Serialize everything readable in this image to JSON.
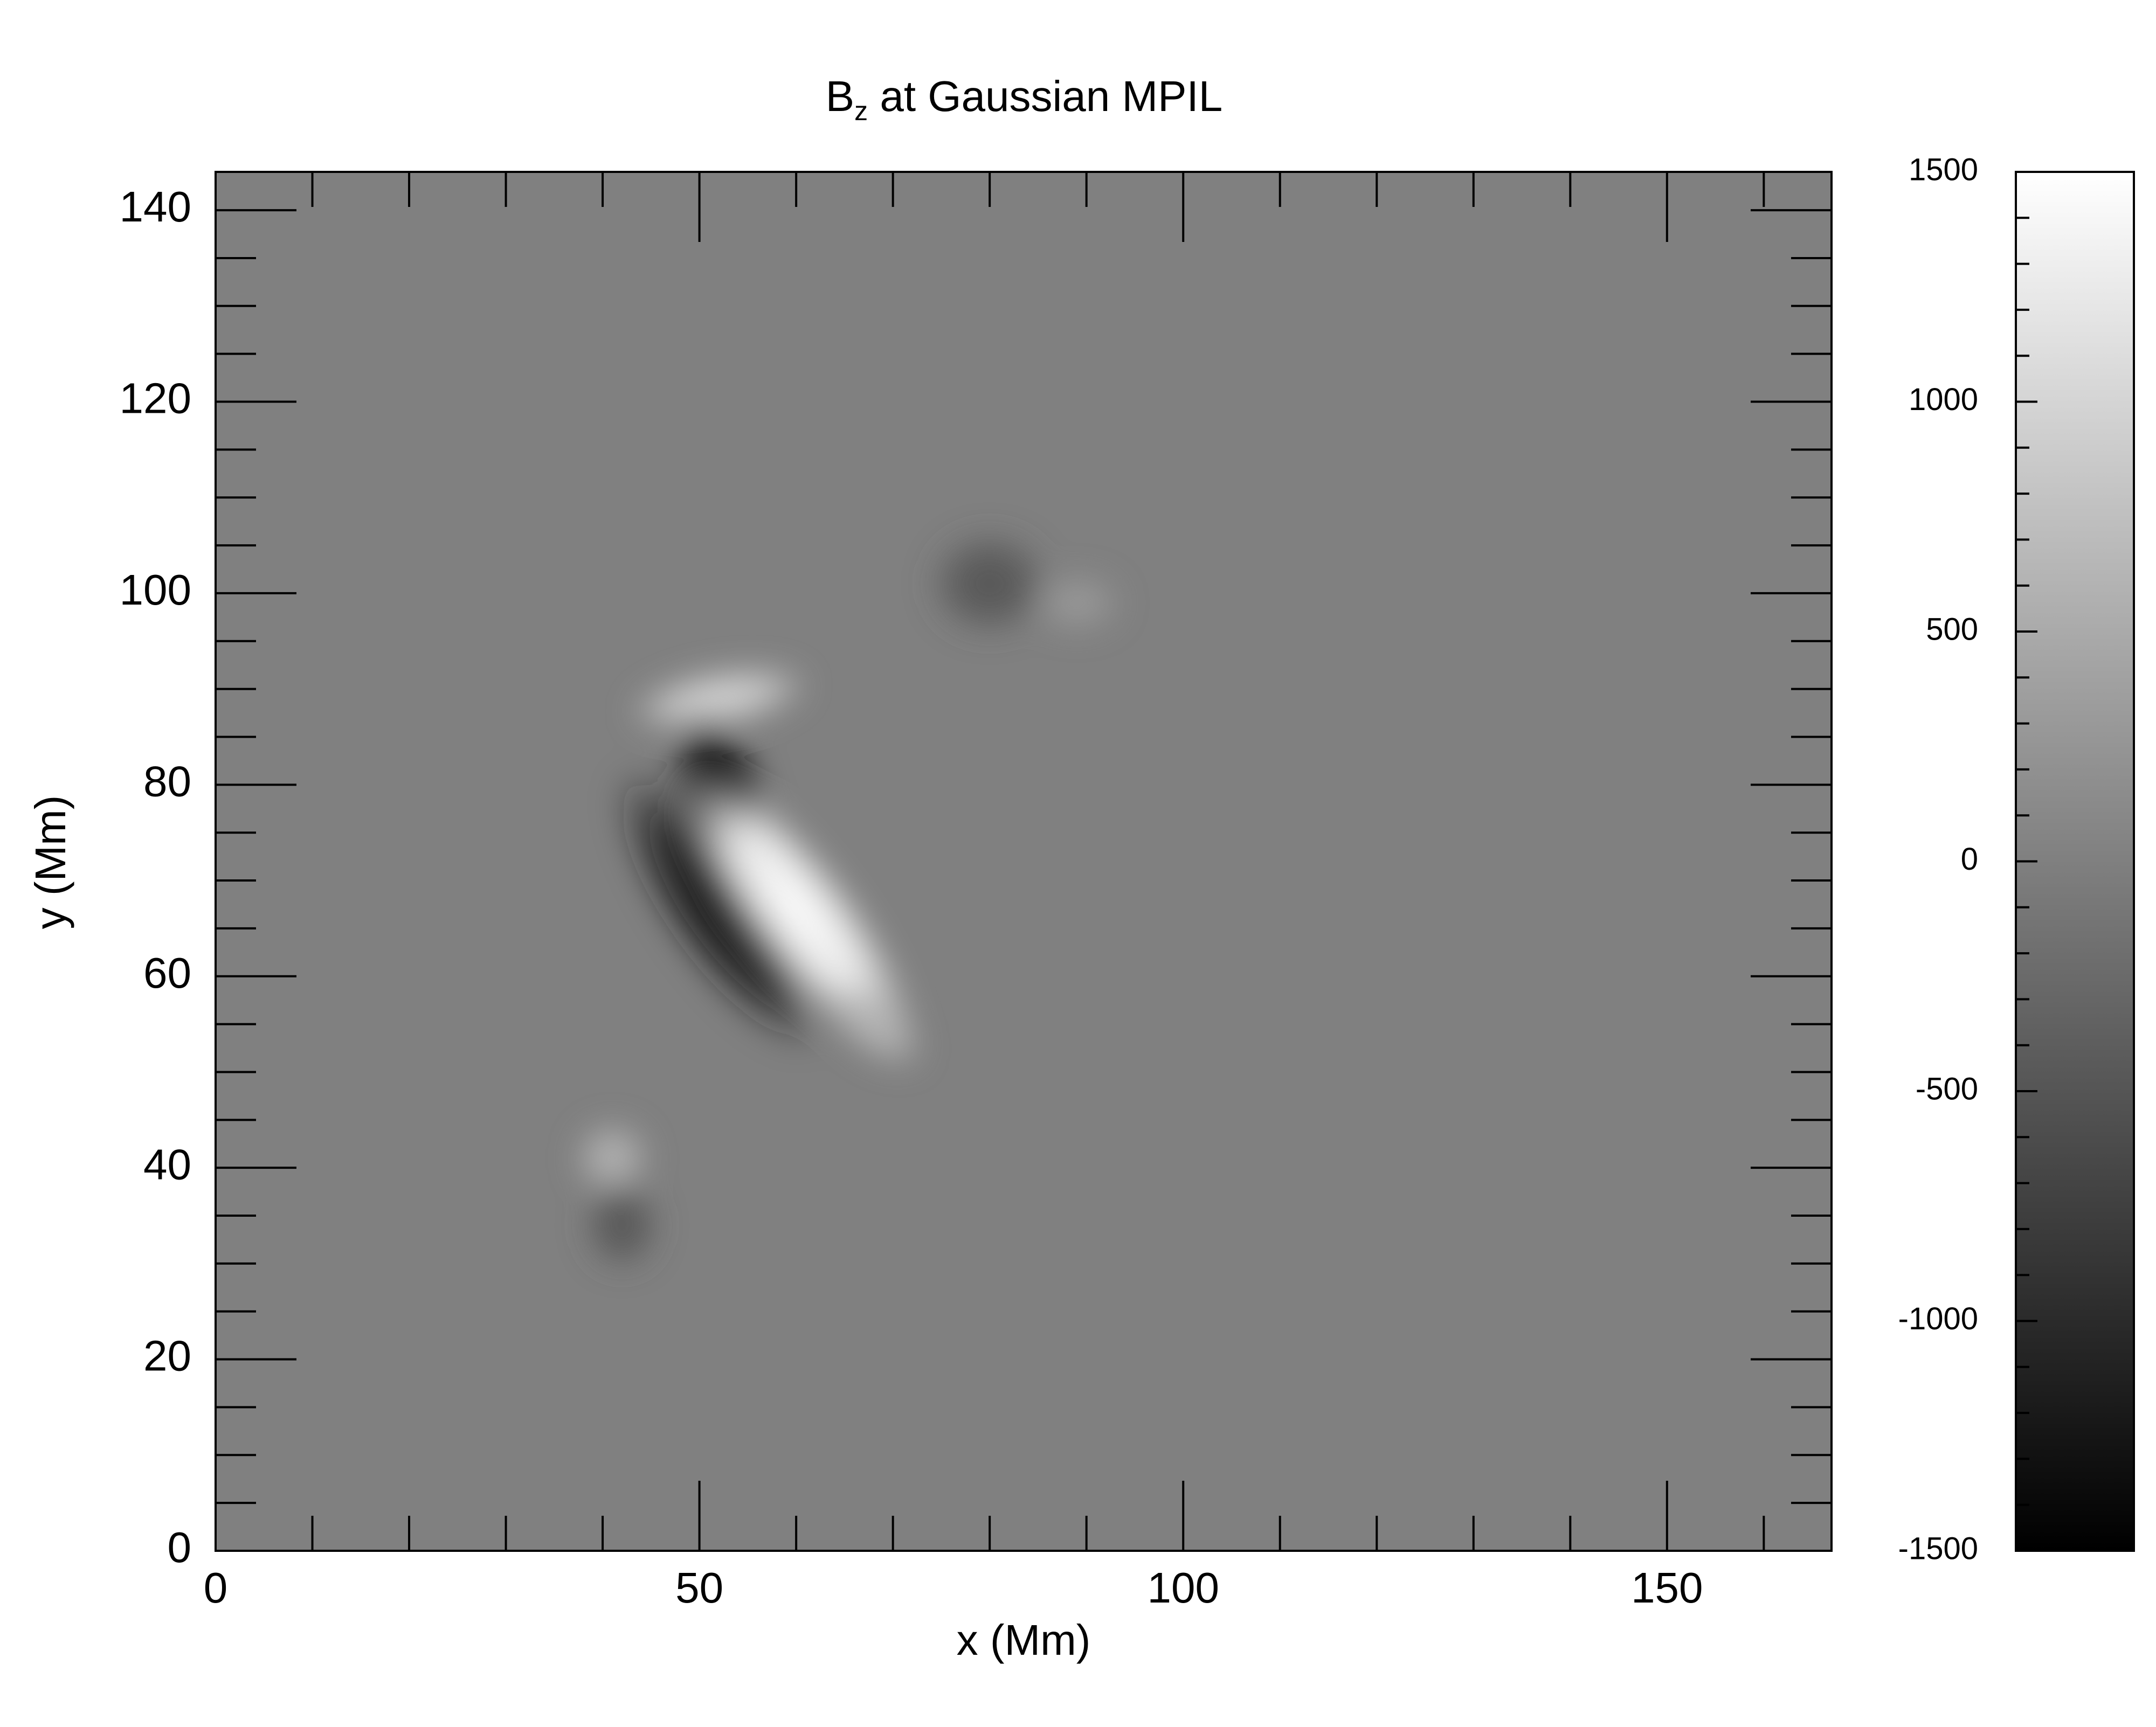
{
  "chart_data": {
    "type": "image",
    "title_parts": [
      "B",
      "z",
      " at Gaussian MPIL"
    ],
    "x_label": "x (Mm)",
    "y_label": "y (Mm)",
    "xlim": [
      0,
      167
    ],
    "ylim": [
      0,
      144
    ],
    "xticks": [
      0,
      50,
      100,
      150
    ],
    "yticks": [
      0,
      20,
      40,
      60,
      80,
      100,
      120,
      140
    ],
    "xminorticks": [
      10,
      20,
      30,
      40,
      60,
      70,
      80,
      90,
      110,
      120,
      130,
      140,
      160
    ],
    "yminorticks": [
      5,
      10,
      15,
      25,
      30,
      35,
      45,
      50,
      55,
      65,
      70,
      75,
      85,
      90,
      95,
      105,
      110,
      115,
      125,
      130,
      135
    ],
    "clim": [
      -1500,
      1500
    ],
    "cticks": [
      -1500,
      -1000,
      -500,
      0,
      500,
      1000,
      1500
    ],
    "cminorticks": [
      -1400,
      -1300,
      -1200,
      -1100,
      -900,
      -800,
      -700,
      -600,
      -400,
      -300,
      -200,
      -100,
      100,
      200,
      300,
      400,
      600,
      700,
      800,
      900,
      1100,
      1200,
      1300,
      1400
    ],
    "colormap": [
      "#000000",
      "#ffffff"
    ],
    "background_value": 0,
    "features": [
      {
        "x": 80,
        "y": 101,
        "value": -500,
        "rx": 4,
        "ry": 3.5,
        "angle": 0
      },
      {
        "x": 89,
        "y": 99,
        "value": 300,
        "rx": 3,
        "ry": 2,
        "angle": 0
      },
      {
        "x": 52,
        "y": 89,
        "value": 1000,
        "rx": 6,
        "ry": 2,
        "angle": 10
      },
      {
        "x": 52,
        "y": 80,
        "value": -1500,
        "rx": 3,
        "ry": 5,
        "angle": 20
      },
      {
        "x": 52,
        "y": 67,
        "value": -1200,
        "rx": 3.5,
        "ry": 11,
        "angle": 35
      },
      {
        "x": 60,
        "y": 67,
        "value": 1500,
        "rx": 3.5,
        "ry": 12,
        "angle": 38
      },
      {
        "x": 68,
        "y": 55,
        "value": 600,
        "rx": 2,
        "ry": 4,
        "angle": 50
      },
      {
        "x": 41,
        "y": 41,
        "value": 600,
        "rx": 2.5,
        "ry": 2.5,
        "angle": 0
      },
      {
        "x": 42,
        "y": 34,
        "value": -500,
        "rx": 2.5,
        "ry": 3,
        "angle": 0
      }
    ]
  }
}
